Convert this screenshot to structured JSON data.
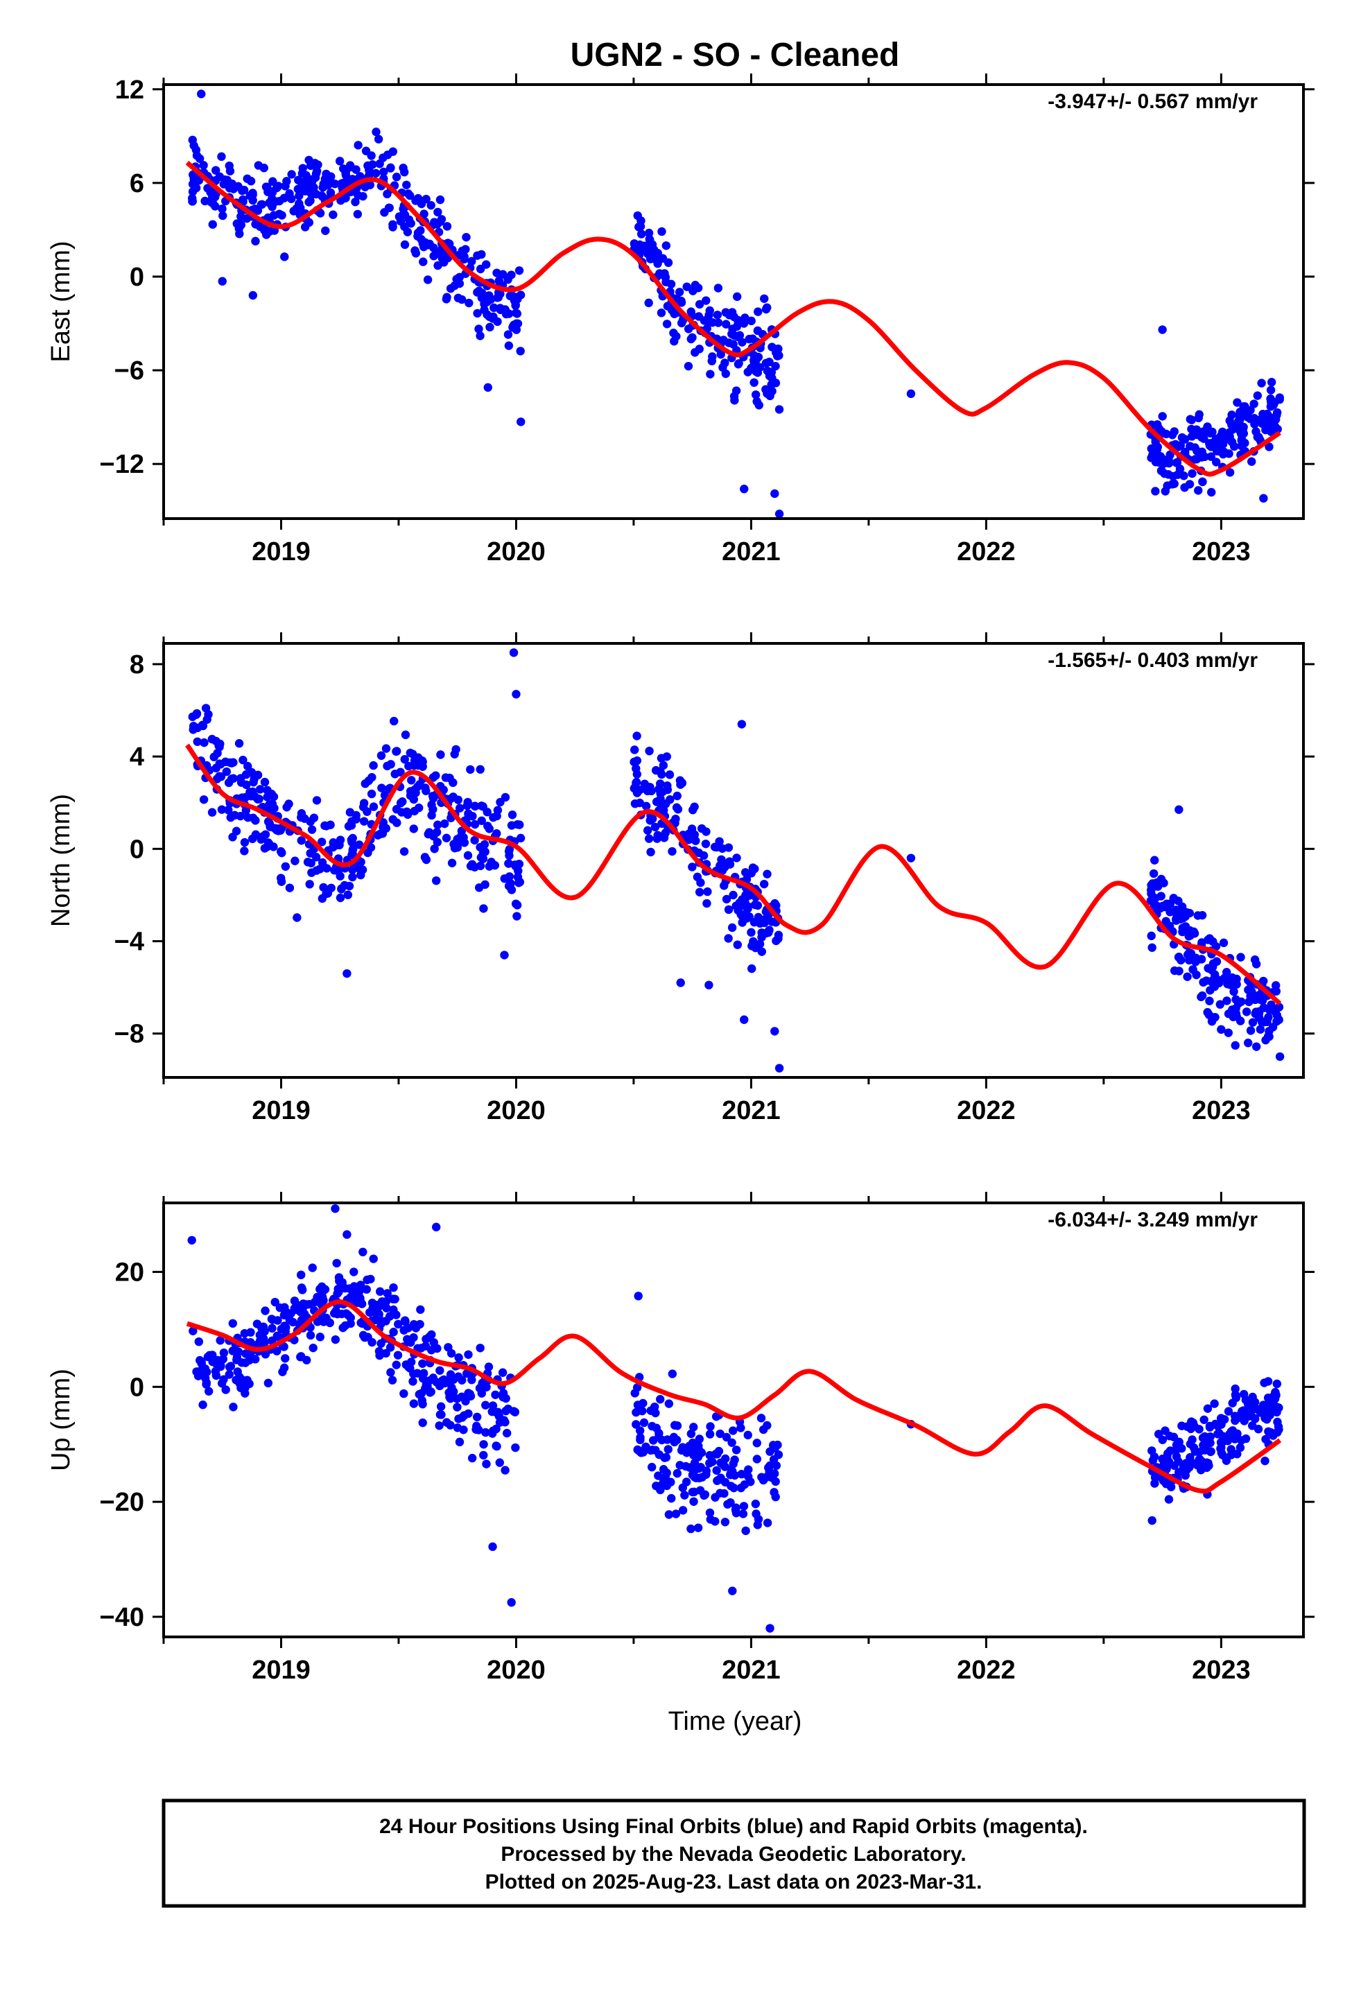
{
  "title": "UGN2  - SO - Cleaned",
  "xlabel": "Time (year)",
  "footer": [
    "24 Hour Positions Using Final Orbits (blue) and Rapid Orbits (magenta).",
    "Processed by the Nevada Geodetic Laboratory.",
    "Plotted on 2025-Aug-23. Last data on 2023-Mar-31."
  ],
  "colors": {
    "points": "#0000ff",
    "fit": "#ff0000",
    "frame": "#000000"
  },
  "chart_data": [
    {
      "type": "scatter",
      "id": "east",
      "ylabel": "East (mm)",
      "rate_label": "-3.947+/- 0.567 mm/yr",
      "xlim": [
        2018.5,
        2023.35
      ],
      "ylim": [
        -15.5,
        12.3
      ],
      "xticks": [
        2019,
        2020,
        2021,
        2022,
        2023
      ],
      "yticks": [
        -12,
        -6,
        0,
        6,
        12
      ],
      "seasonal_amplitude": 2.6,
      "seasonal_phase_year": 2019.35,
      "series": [
        {
          "name": "Model fit",
          "x": [
            2018.6,
            2018.8,
            2019.0,
            2019.2,
            2019.4,
            2019.6,
            2019.8,
            2020.0,
            2020.2,
            2020.35,
            2020.5,
            2020.7,
            2020.9,
            2021.0,
            2021.2,
            2021.35,
            2021.5,
            2021.7,
            2021.9,
            2022.0,
            2022.2,
            2022.35,
            2022.5,
            2022.7,
            2022.9,
            2023.0,
            2023.25
          ],
          "y": [
            7.3,
            4.8,
            3.2,
            4.8,
            6.2,
            3.6,
            0.3,
            -0.8,
            1.5,
            2.4,
            1.4,
            -2.2,
            -4.8,
            -4.6,
            -2.3,
            -1.6,
            -2.8,
            -6.0,
            -8.6,
            -8.4,
            -6.3,
            -5.5,
            -6.5,
            -9.8,
            -12.3,
            -12.4,
            -10.0
          ]
        }
      ],
      "observations": [
        {
          "x_range": [
            2018.62,
            2019.35
          ],
          "trend": [
            7.0,
            4.3
          ],
          "scatter": 1.6,
          "count": 230
        },
        {
          "x_range": [
            2019.35,
            2020.02
          ],
          "trend": [
            6.0,
            -1.5
          ],
          "scatter": 2.0,
          "count": 190
        },
        {
          "x_range": [
            2020.5,
            2021.12
          ],
          "trend": [
            1.8,
            -5.5
          ],
          "scatter": 2.0,
          "count": 190
        },
        {
          "x_range": [
            2022.7,
            2023.25
          ],
          "trend": [
            -10.0,
            -9.5
          ],
          "scatter": 1.7,
          "count": 200
        }
      ],
      "outliers": [
        {
          "x": 2018.66,
          "y": 11.7
        },
        {
          "x": 2018.75,
          "y": -0.3
        },
        {
          "x": 2018.88,
          "y": -1.2
        },
        {
          "x": 2019.88,
          "y": -7.1
        },
        {
          "x": 2020.02,
          "y": -9.3
        },
        {
          "x": 2020.97,
          "y": -13.6
        },
        {
          "x": 2021.1,
          "y": -13.9
        },
        {
          "x": 2021.12,
          "y": -15.2
        },
        {
          "x": 2021.68,
          "y": -7.5
        },
        {
          "x": 2022.75,
          "y": -3.4
        },
        {
          "x": 2023.18,
          "y": -14.2
        }
      ]
    },
    {
      "type": "scatter",
      "id": "north",
      "ylabel": "North (mm)",
      "rate_label": "-1.565+/- 0.403 mm/yr",
      "xlim": [
        2018.5,
        2023.35
      ],
      "ylim": [
        -9.9,
        8.9
      ],
      "xticks": [
        2019,
        2020,
        2021,
        2022,
        2023
      ],
      "yticks": [
        -8,
        -4,
        0,
        4,
        8
      ],
      "seasonal_amplitude": 1.9,
      "seasonal_phase_year": 2019.55,
      "series": [
        {
          "name": "Model fit",
          "x": [
            2018.6,
            2018.75,
            2018.9,
            2019.1,
            2019.3,
            2019.55,
            2019.8,
            2020.0,
            2020.25,
            2020.55,
            2020.8,
            2021.0,
            2021.15,
            2021.3,
            2021.55,
            2021.8,
            2022.0,
            2022.25,
            2022.55,
            2022.8,
            2023.0,
            2023.25
          ],
          "y": [
            4.5,
            2.4,
            1.7,
            0.6,
            -0.6,
            3.3,
            0.8,
            0.1,
            -2.1,
            1.6,
            -0.8,
            -1.7,
            -3.3,
            -3.3,
            0.1,
            -2.5,
            -3.2,
            -5.1,
            -1.5,
            -3.9,
            -4.6,
            -6.7
          ]
        }
      ],
      "observations": [
        {
          "x_range": [
            2018.62,
            2019.35
          ],
          "trend": [
            4.2,
            -0.5
          ],
          "scatter": 1.4,
          "count": 220
        },
        {
          "x_range": [
            2019.35,
            2020.02
          ],
          "trend": [
            1.5,
            0.5
          ],
          "scatter": 1.8,
          "count": 200
        },
        {
          "x_range": [
            2020.5,
            2021.12
          ],
          "trend": [
            1.5,
            -2.0
          ],
          "scatter": 1.5,
          "count": 190
        },
        {
          "x_range": [
            2022.7,
            2023.25
          ],
          "trend": [
            -2.5,
            -6.5
          ],
          "scatter": 1.3,
          "count": 200
        }
      ],
      "outliers": [
        {
          "x": 2019.28,
          "y": -5.4
        },
        {
          "x": 2019.95,
          "y": -4.6
        },
        {
          "x": 2019.99,
          "y": 8.5
        },
        {
          "x": 2020.0,
          "y": 6.7
        },
        {
          "x": 2020.7,
          "y": -5.8
        },
        {
          "x": 2020.82,
          "y": -5.9
        },
        {
          "x": 2020.97,
          "y": -7.4
        },
        {
          "x": 2021.1,
          "y": -7.9
        },
        {
          "x": 2021.12,
          "y": -9.5
        },
        {
          "x": 2020.96,
          "y": 5.4
        },
        {
          "x": 2021.68,
          "y": -0.4
        },
        {
          "x": 2022.82,
          "y": 1.7
        },
        {
          "x": 2023.25,
          "y": -9.0
        }
      ]
    },
    {
      "type": "scatter",
      "id": "up",
      "ylabel": "Up (mm)",
      "rate_label": "-6.034+/- 3.249 mm/yr",
      "xlim": [
        2018.5,
        2023.35
      ],
      "ylim": [
        -43.5,
        32.0
      ],
      "xticks": [
        2019,
        2020,
        2021,
        2022,
        2023
      ],
      "yticks": [
        -40,
        -20,
        0,
        20
      ],
      "seasonal_amplitude": 7.0,
      "seasonal_phase_year": 2019.25,
      "series": [
        {
          "name": "Model fit",
          "x": [
            2018.6,
            2018.75,
            2018.9,
            2019.05,
            2019.25,
            2019.45,
            2019.65,
            2019.8,
            2019.95,
            2020.1,
            2020.25,
            2020.45,
            2020.65,
            2020.8,
            2020.95,
            2021.1,
            2021.25,
            2021.45,
            2021.7,
            2021.95,
            2022.1,
            2022.25,
            2022.45,
            2022.7,
            2022.9,
            2023.0,
            2023.25
          ],
          "y": [
            11.0,
            9.0,
            6.5,
            9.0,
            14.8,
            8.5,
            4.6,
            3.2,
            0.6,
            5.0,
            8.8,
            2.4,
            -1.3,
            -3.0,
            -5.4,
            -1.4,
            2.7,
            -2.3,
            -6.7,
            -11.7,
            -7.8,
            -3.3,
            -8.2,
            -13.9,
            -18.0,
            -16.5,
            -9.3
          ]
        }
      ],
      "observations": [
        {
          "x_range": [
            2018.62,
            2019.4
          ],
          "trend": [
            7.0,
            12.0
          ],
          "scatter": 4.5,
          "count": 230
        },
        {
          "x_range": [
            2019.4,
            2020.0
          ],
          "trend": [
            12.0,
            -5.0
          ],
          "scatter": 6.0,
          "count": 180
        },
        {
          "x_range": [
            2020.5,
            2021.12
          ],
          "trend": [
            -5.0,
            -17.0
          ],
          "scatter": 7.0,
          "count": 190
        },
        {
          "x_range": [
            2022.7,
            2023.25
          ],
          "trend": [
            -10.0,
            -7.0
          ],
          "scatter": 4.5,
          "count": 200
        }
      ],
      "outliers": [
        {
          "x": 2018.62,
          "y": 25.5
        },
        {
          "x": 2019.23,
          "y": 31.0
        },
        {
          "x": 2019.28,
          "y": 26.5
        },
        {
          "x": 2019.66,
          "y": 27.8
        },
        {
          "x": 2019.9,
          "y": -27.8
        },
        {
          "x": 2019.98,
          "y": -37.5
        },
        {
          "x": 2020.52,
          "y": 15.8
        },
        {
          "x": 2020.92,
          "y": -35.5
        },
        {
          "x": 2021.08,
          "y": -42.0
        },
        {
          "x": 2021.68,
          "y": -6.5
        }
      ]
    }
  ]
}
